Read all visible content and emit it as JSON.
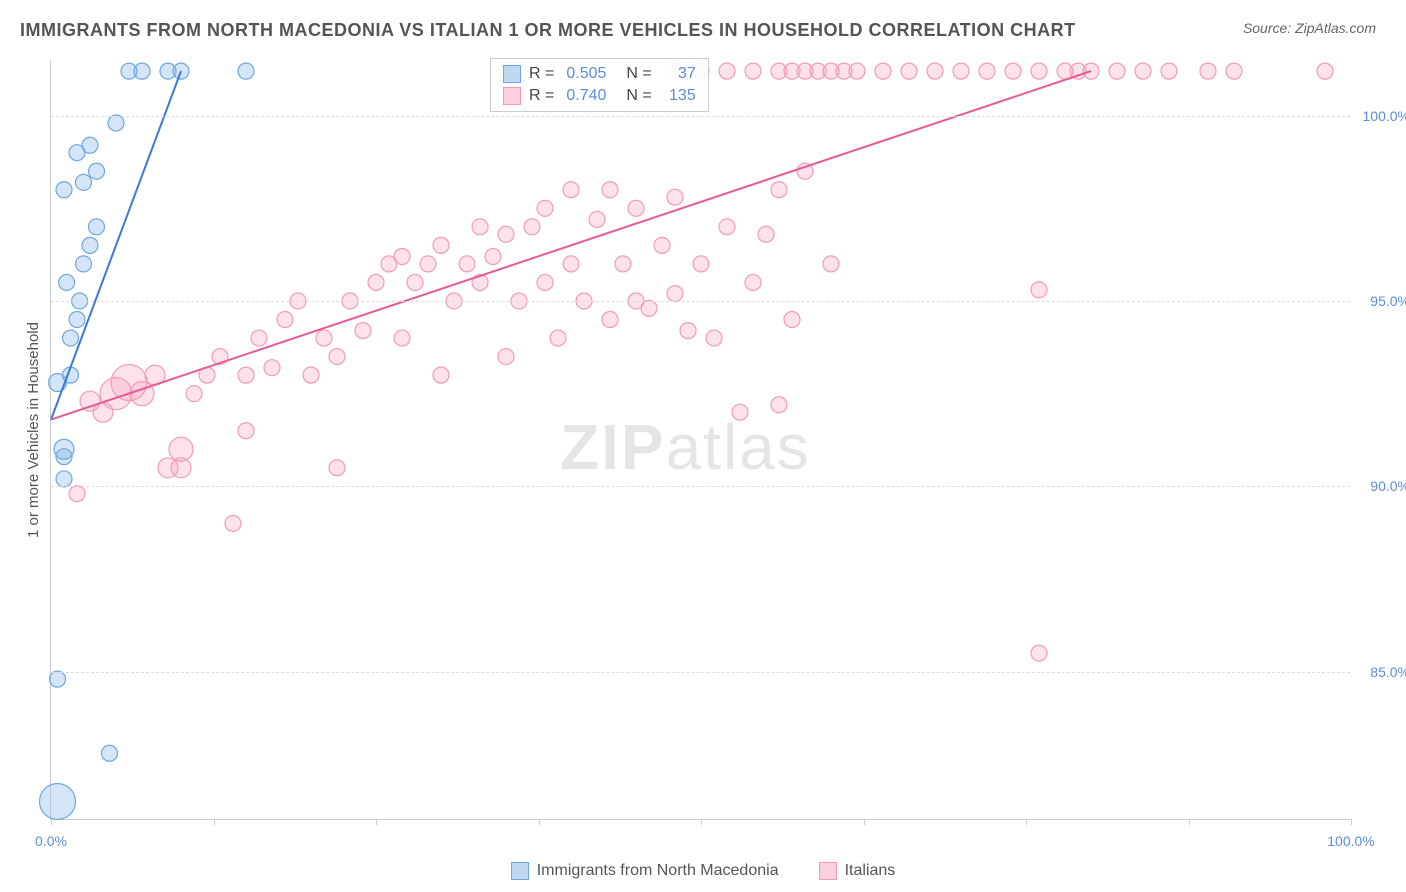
{
  "title": "IMMIGRANTS FROM NORTH MACEDONIA VS ITALIAN 1 OR MORE VEHICLES IN HOUSEHOLD CORRELATION CHART",
  "source": "Source: ZipAtlas.com",
  "ylabel": "1 or more Vehicles in Household",
  "watermark": {
    "a": "ZIP",
    "b": "atlas"
  },
  "chart": {
    "type": "scatter",
    "xlim": [
      0,
      100
    ],
    "ylim": [
      81,
      101.5
    ],
    "xticks": [
      0,
      12.5,
      25,
      37.5,
      50,
      62.5,
      75,
      87.5,
      100
    ],
    "xtick_labels": {
      "0": "0.0%",
      "100": "100.0%"
    },
    "yticks": [
      85,
      90,
      95,
      100
    ],
    "ytick_labels": [
      "85.0%",
      "90.0%",
      "95.0%",
      "100.0%"
    ],
    "background_color": "#ffffff",
    "grid_color": "#dddddd",
    "grid_dash": true,
    "series": [
      {
        "name": "Immigrants from North Macedonia",
        "color_fill": "rgba(130,180,230,0.35)",
        "color_stroke": "#6fa8dc",
        "trend_color": "#3b78d8",
        "R": "0.505",
        "N": "37",
        "trendline": {
          "x1": 0,
          "y1": 91.8,
          "x2": 10,
          "y2": 101.2
        },
        "points": [
          {
            "x": 0.5,
            "y": 81.5,
            "r": 18
          },
          {
            "x": 0.5,
            "y": 84.8,
            "r": 8
          },
          {
            "x": 4.5,
            "y": 82.8,
            "r": 8
          },
          {
            "x": 1,
            "y": 90.2,
            "r": 8
          },
          {
            "x": 1,
            "y": 90.8,
            "r": 8
          },
          {
            "x": 0.5,
            "y": 92.8,
            "r": 9
          },
          {
            "x": 1.5,
            "y": 93,
            "r": 8
          },
          {
            "x": 2,
            "y": 94.5,
            "r": 8
          },
          {
            "x": 1.2,
            "y": 95.5,
            "r": 8
          },
          {
            "x": 2.2,
            "y": 95,
            "r": 8
          },
          {
            "x": 1.5,
            "y": 94,
            "r": 8
          },
          {
            "x": 2.5,
            "y": 96,
            "r": 8
          },
          {
            "x": 3,
            "y": 96.5,
            "r": 8
          },
          {
            "x": 3.5,
            "y": 97,
            "r": 8
          },
          {
            "x": 1,
            "y": 98,
            "r": 8
          },
          {
            "x": 2.5,
            "y": 98.2,
            "r": 8
          },
          {
            "x": 3.5,
            "y": 98.5,
            "r": 8
          },
          {
            "x": 2,
            "y": 99,
            "r": 8
          },
          {
            "x": 3,
            "y": 99.2,
            "r": 8
          },
          {
            "x": 5,
            "y": 99.8,
            "r": 8
          },
          {
            "x": 1,
            "y": 91,
            "r": 10
          },
          {
            "x": 6,
            "y": 101.2,
            "r": 8
          },
          {
            "x": 7,
            "y": 101.2,
            "r": 8
          },
          {
            "x": 9,
            "y": 101.2,
            "r": 8
          },
          {
            "x": 10,
            "y": 101.2,
            "r": 8
          },
          {
            "x": 15,
            "y": 101.2,
            "r": 8
          }
        ]
      },
      {
        "name": "Italians",
        "color_fill": "rgba(250,160,190,0.3)",
        "color_stroke": "#f29bb7",
        "trend_color": "#e75a9a",
        "R": "0.740",
        "N": "135",
        "trendline": {
          "x1": 0,
          "y1": 91.8,
          "x2": 80,
          "y2": 101.2
        },
        "points": [
          {
            "x": 2,
            "y": 89.8,
            "r": 8
          },
          {
            "x": 5,
            "y": 92.5,
            "r": 16
          },
          {
            "x": 6,
            "y": 92.8,
            "r": 18
          },
          {
            "x": 7,
            "y": 92.5,
            "r": 12
          },
          {
            "x": 8,
            "y": 93,
            "r": 10
          },
          {
            "x": 4,
            "y": 92,
            "r": 10
          },
          {
            "x": 3,
            "y": 92.3,
            "r": 10
          },
          {
            "x": 9,
            "y": 90.5,
            "r": 10
          },
          {
            "x": 10,
            "y": 91,
            "r": 12
          },
          {
            "x": 11,
            "y": 92.5,
            "r": 8
          },
          {
            "x": 12,
            "y": 93,
            "r": 8
          },
          {
            "x": 10,
            "y": 90.5,
            "r": 10
          },
          {
            "x": 13,
            "y": 93.5,
            "r": 8
          },
          {
            "x": 14,
            "y": 89,
            "r": 8
          },
          {
            "x": 15,
            "y": 93,
            "r": 8
          },
          {
            "x": 16,
            "y": 94,
            "r": 8
          },
          {
            "x": 15,
            "y": 91.5,
            "r": 8
          },
          {
            "x": 17,
            "y": 93.2,
            "r": 8
          },
          {
            "x": 18,
            "y": 94.5,
            "r": 8
          },
          {
            "x": 20,
            "y": 93,
            "r": 8
          },
          {
            "x": 19,
            "y": 95,
            "r": 8
          },
          {
            "x": 21,
            "y": 94,
            "r": 8
          },
          {
            "x": 22,
            "y": 93.5,
            "r": 8
          },
          {
            "x": 22,
            "y": 90.5,
            "r": 8
          },
          {
            "x": 23,
            "y": 95,
            "r": 8
          },
          {
            "x": 24,
            "y": 94.2,
            "r": 8
          },
          {
            "x": 25,
            "y": 95.5,
            "r": 8
          },
          {
            "x": 26,
            "y": 96,
            "r": 8
          },
          {
            "x": 27,
            "y": 94,
            "r": 8
          },
          {
            "x": 27,
            "y": 96.2,
            "r": 8
          },
          {
            "x": 28,
            "y": 95.5,
            "r": 8
          },
          {
            "x": 29,
            "y": 96,
            "r": 8
          },
          {
            "x": 30,
            "y": 93,
            "r": 8
          },
          {
            "x": 30,
            "y": 96.5,
            "r": 8
          },
          {
            "x": 31,
            "y": 95,
            "r": 8
          },
          {
            "x": 32,
            "y": 96,
            "r": 8
          },
          {
            "x": 33,
            "y": 95.5,
            "r": 8
          },
          {
            "x": 33,
            "y": 97,
            "r": 8
          },
          {
            "x": 34,
            "y": 96.2,
            "r": 8
          },
          {
            "x": 35,
            "y": 93.5,
            "r": 8
          },
          {
            "x": 35,
            "y": 96.8,
            "r": 8
          },
          {
            "x": 36,
            "y": 95,
            "r": 8
          },
          {
            "x": 37,
            "y": 97,
            "r": 8
          },
          {
            "x": 38,
            "y": 95.5,
            "r": 8
          },
          {
            "x": 38,
            "y": 97.5,
            "r": 8
          },
          {
            "x": 39,
            "y": 94,
            "r": 8
          },
          {
            "x": 40,
            "y": 96,
            "r": 8
          },
          {
            "x": 40,
            "y": 98,
            "r": 8
          },
          {
            "x": 41,
            "y": 95,
            "r": 8
          },
          {
            "x": 42,
            "y": 97.2,
            "r": 8
          },
          {
            "x": 43,
            "y": 94.5,
            "r": 8
          },
          {
            "x": 43,
            "y": 98,
            "r": 8
          },
          {
            "x": 44,
            "y": 96,
            "r": 8
          },
          {
            "x": 45,
            "y": 95,
            "r": 8
          },
          {
            "x": 45,
            "y": 97.5,
            "r": 8
          },
          {
            "x": 46,
            "y": 94.8,
            "r": 8
          },
          {
            "x": 47,
            "y": 96.5,
            "r": 8
          },
          {
            "x": 48,
            "y": 95.2,
            "r": 8
          },
          {
            "x": 48,
            "y": 97.8,
            "r": 8
          },
          {
            "x": 49,
            "y": 94.2,
            "r": 8
          },
          {
            "x": 50,
            "y": 96,
            "r": 8
          },
          {
            "x": 51,
            "y": 94,
            "r": 8
          },
          {
            "x": 52,
            "y": 97,
            "r": 8
          },
          {
            "x": 53,
            "y": 92,
            "r": 8
          },
          {
            "x": 54,
            "y": 95.5,
            "r": 8
          },
          {
            "x": 55,
            "y": 96.8,
            "r": 8
          },
          {
            "x": 56,
            "y": 92.2,
            "r": 8
          },
          {
            "x": 56,
            "y": 98,
            "r": 8
          },
          {
            "x": 57,
            "y": 94.5,
            "r": 8
          },
          {
            "x": 58,
            "y": 98.5,
            "r": 8
          },
          {
            "x": 60,
            "y": 96,
            "r": 8
          },
          {
            "x": 48,
            "y": 101.2,
            "r": 8
          },
          {
            "x": 50,
            "y": 101.2,
            "r": 8
          },
          {
            "x": 52,
            "y": 101.2,
            "r": 8
          },
          {
            "x": 54,
            "y": 101.2,
            "r": 8
          },
          {
            "x": 56,
            "y": 101.2,
            "r": 8
          },
          {
            "x": 57,
            "y": 101.2,
            "r": 8
          },
          {
            "x": 58,
            "y": 101.2,
            "r": 8
          },
          {
            "x": 59,
            "y": 101.2,
            "r": 8
          },
          {
            "x": 60,
            "y": 101.2,
            "r": 8
          },
          {
            "x": 61,
            "y": 101.2,
            "r": 8
          },
          {
            "x": 62,
            "y": 101.2,
            "r": 8
          },
          {
            "x": 64,
            "y": 101.2,
            "r": 8
          },
          {
            "x": 66,
            "y": 101.2,
            "r": 8
          },
          {
            "x": 68,
            "y": 101.2,
            "r": 8
          },
          {
            "x": 70,
            "y": 101.2,
            "r": 8
          },
          {
            "x": 72,
            "y": 101.2,
            "r": 8
          },
          {
            "x": 74,
            "y": 101.2,
            "r": 8
          },
          {
            "x": 76,
            "y": 101.2,
            "r": 8
          },
          {
            "x": 78,
            "y": 101.2,
            "r": 8
          },
          {
            "x": 79,
            "y": 101.2,
            "r": 8
          },
          {
            "x": 80,
            "y": 101.2,
            "r": 8
          },
          {
            "x": 82,
            "y": 101.2,
            "r": 8
          },
          {
            "x": 84,
            "y": 101.2,
            "r": 8
          },
          {
            "x": 86,
            "y": 101.2,
            "r": 8
          },
          {
            "x": 89,
            "y": 101.2,
            "r": 8
          },
          {
            "x": 91,
            "y": 101.2,
            "r": 8
          },
          {
            "x": 98,
            "y": 101.2,
            "r": 8
          },
          {
            "x": 76,
            "y": 95.3,
            "r": 8
          },
          {
            "x": 76,
            "y": 85.5,
            "r": 8
          }
        ]
      }
    ]
  },
  "legend_box": {
    "rows": [
      {
        "swatch_fill": "rgba(130,180,230,0.5)",
        "swatch_stroke": "#6fa8dc",
        "R_label": "R =",
        "R": "0.505",
        "N_label": "N =",
        "N": "37"
      },
      {
        "swatch_fill": "rgba(250,160,190,0.5)",
        "swatch_stroke": "#f29bb7",
        "R_label": "R =",
        "R": "0.740",
        "N_label": "N =",
        "N": "135"
      }
    ]
  },
  "bottom_legend": [
    {
      "swatch_fill": "rgba(130,180,230,0.5)",
      "swatch_stroke": "#6fa8dc",
      "label": "Immigrants from North Macedonia"
    },
    {
      "swatch_fill": "rgba(250,160,190,0.5)",
      "swatch_stroke": "#f29bb7",
      "label": "Italians"
    }
  ]
}
